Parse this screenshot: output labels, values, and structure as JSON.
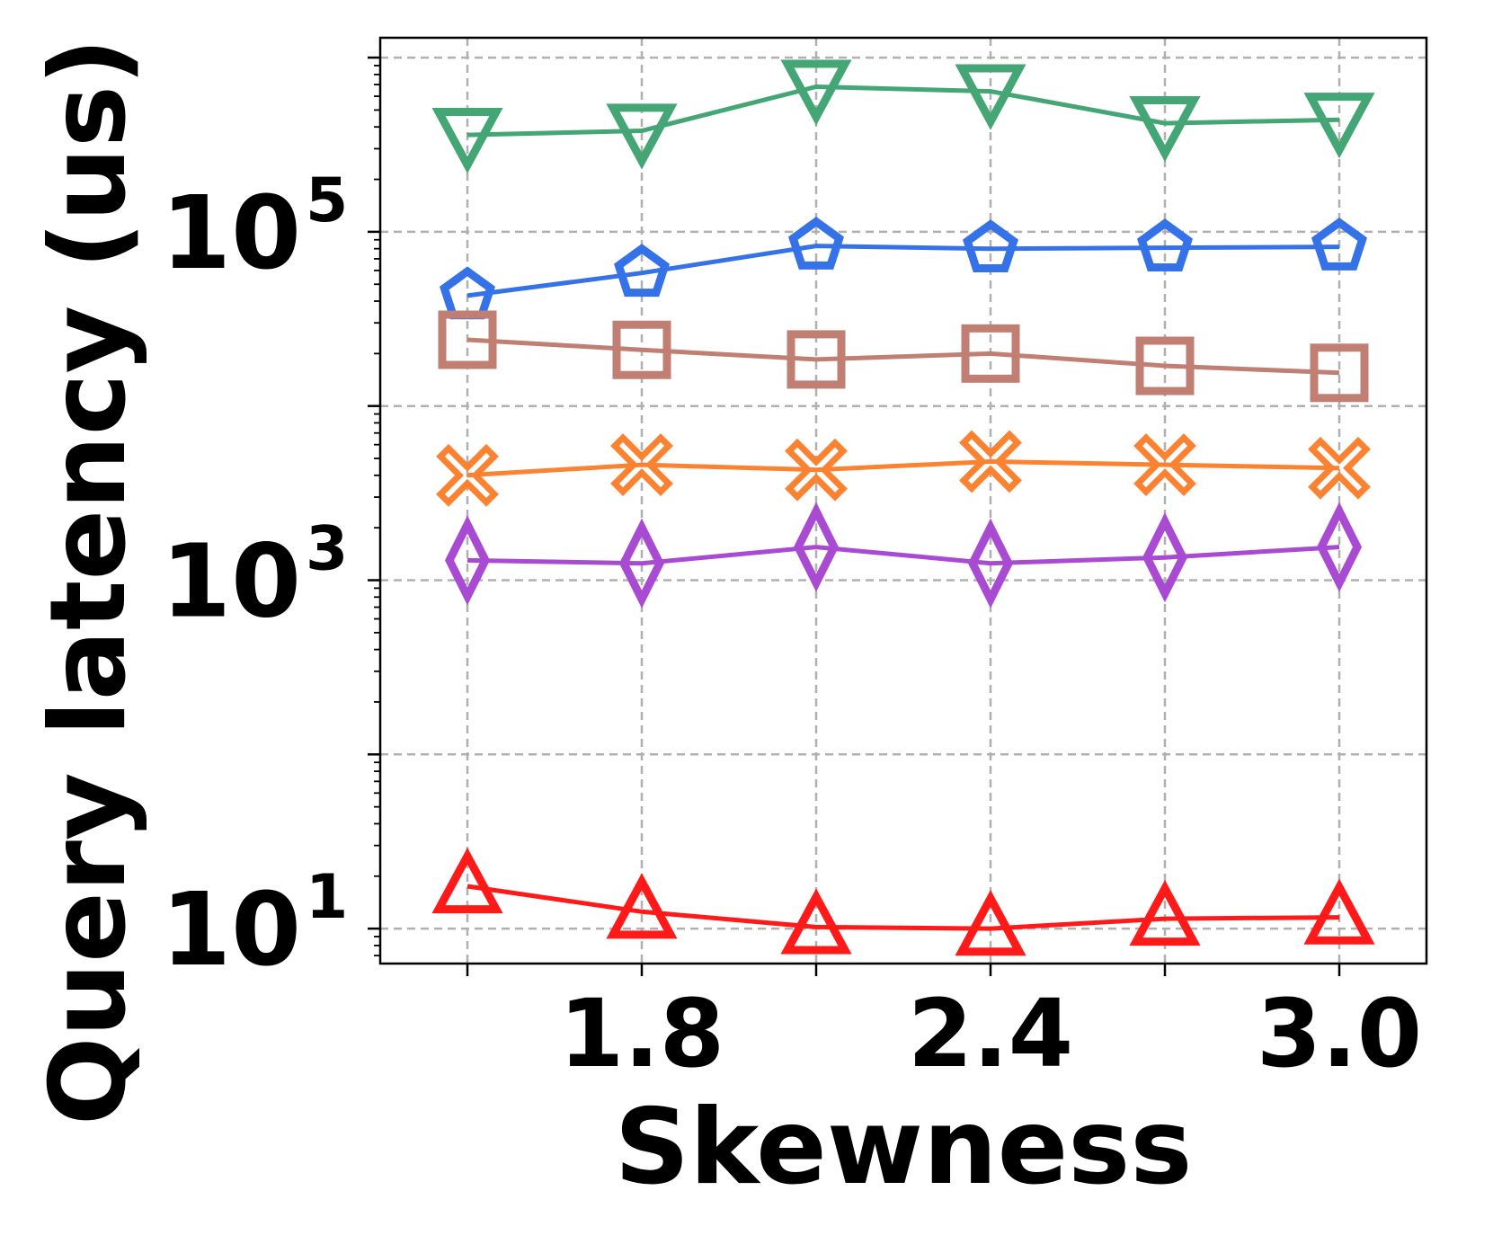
{
  "chart_data": {
    "type": "line",
    "xlabel": "Skewness",
    "ylabel": "Query latency (us)",
    "xscale": "linear",
    "yscale": "log",
    "xlim": [
      1.35,
      3.15
    ],
    "ylim": [
      6.3,
      1300000
    ],
    "x": [
      1.5,
      1.8,
      2.1,
      2.4,
      2.7,
      3.0
    ],
    "xticks": [
      {
        "value": 1.8,
        "label": "1.8"
      },
      {
        "value": 2.4,
        "label": "2.4"
      },
      {
        "value": 3.0,
        "label": "3.0"
      }
    ],
    "yticks": [
      {
        "value": 10,
        "base": "10",
        "exp": "1"
      },
      {
        "value": 1000,
        "base": "10",
        "exp": "3"
      },
      {
        "value": 100000,
        "base": "10",
        "exp": "5"
      }
    ],
    "grid": true,
    "series": [
      {
        "marker": "triangle-down",
        "color": "#43a674",
        "values": [
          360000,
          380000,
          680000,
          640000,
          420000,
          440000
        ]
      },
      {
        "marker": "pentagon",
        "color": "#3572e8",
        "values": [
          43000,
          58000,
          83000,
          80000,
          81000,
          82000
        ]
      },
      {
        "marker": "square",
        "color": "#c17f74",
        "values": [
          24000,
          21000,
          18500,
          20000,
          17000,
          15500
        ]
      },
      {
        "marker": "x-thick",
        "color": "#fb8230",
        "values": [
          4000,
          4600,
          4300,
          4800,
          4600,
          4400
        ]
      },
      {
        "marker": "diamond",
        "color": "#a94ad2",
        "values": [
          1300,
          1250,
          1550,
          1250,
          1350,
          1550
        ]
      },
      {
        "marker": "triangle-up",
        "color": "#ff1a1a",
        "values": [
          17.5,
          12.5,
          10.2,
          10.0,
          11.4,
          11.6
        ]
      }
    ]
  }
}
